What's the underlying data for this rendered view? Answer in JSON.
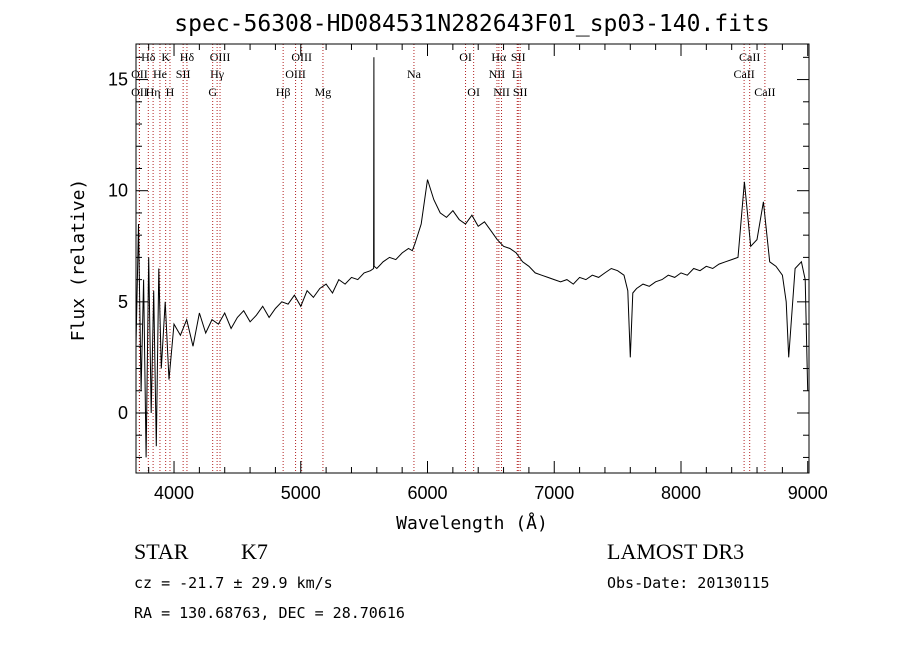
{
  "chart_data": {
    "type": "line",
    "title": "spec-56308-HD084531N282643F01_sp03-140.fits",
    "xlabel": "Wavelength (Å)",
    "ylabel": "Flux (relative)",
    "xlim": [
      3700,
      9010
    ],
    "ylim": [
      -2.7,
      16.6
    ],
    "x_ticks": [
      "4000",
      "5000",
      "6000",
      "7000",
      "8000",
      "9000"
    ],
    "y_ticks": [
      "0",
      "5",
      "10",
      "15"
    ],
    "grid": false,
    "series": [
      {
        "x": [
          3700,
          3720,
          3740,
          3760,
          3780,
          3800,
          3820,
          3840,
          3860,
          3880,
          3900,
          3930,
          3960,
          4000,
          4050,
          4100,
          4150,
          4200,
          4250,
          4300,
          4350,
          4400,
          4450,
          4500,
          4550,
          4600,
          4650,
          4700,
          4750,
          4800,
          4850,
          4900,
          4950,
          5000,
          5050,
          5100,
          5150,
          5200,
          5250,
          5300,
          5350,
          5400,
          5450,
          5500,
          5550,
          5575,
          5577,
          5579,
          5600,
          5650,
          5700,
          5750,
          5800,
          5850,
          5880,
          5900,
          5950,
          6000,
          6050,
          6100,
          6150,
          6200,
          6250,
          6300,
          6350,
          6400,
          6450,
          6500,
          6550,
          6600,
          6650,
          6700,
          6750,
          6800,
          6850,
          6900,
          6950,
          7000,
          7050,
          7100,
          7150,
          7200,
          7250,
          7300,
          7350,
          7400,
          7450,
          7500,
          7550,
          7580,
          7600,
          7620,
          7650,
          7700,
          7750,
          7800,
          7850,
          7900,
          7950,
          8000,
          8050,
          8100,
          8150,
          8200,
          8250,
          8300,
          8350,
          8400,
          8450,
          8500,
          8550,
          8600,
          8650,
          8700,
          8750,
          8800,
          8830,
          8850,
          8900,
          8950,
          8980,
          9000
        ],
        "y": [
          3.0,
          8.5,
          1.0,
          6.0,
          -2.0,
          7.0,
          0.0,
          5.5,
          -1.5,
          6.5,
          2.0,
          5.0,
          1.5,
          4.0,
          3.5,
          4.2,
          3.0,
          4.5,
          3.6,
          4.2,
          4.0,
          4.5,
          3.8,
          4.3,
          4.6,
          4.1,
          4.4,
          4.8,
          4.3,
          4.7,
          5.0,
          4.9,
          5.3,
          4.8,
          5.5,
          5.2,
          5.6,
          5.8,
          5.4,
          6.0,
          5.8,
          6.1,
          6.0,
          6.3,
          6.4,
          6.5,
          16.0,
          6.6,
          6.5,
          6.8,
          7.0,
          6.9,
          7.2,
          7.4,
          7.3,
          7.6,
          8.5,
          10.5,
          9.6,
          9.0,
          8.8,
          9.1,
          8.7,
          8.5,
          8.9,
          8.4,
          8.6,
          8.2,
          7.8,
          7.5,
          7.4,
          7.2,
          6.8,
          6.6,
          6.3,
          6.2,
          6.1,
          6.0,
          5.9,
          6.0,
          5.8,
          6.1,
          6.0,
          6.2,
          6.1,
          6.3,
          6.5,
          6.4,
          6.2,
          5.5,
          2.5,
          5.4,
          5.6,
          5.8,
          5.7,
          5.9,
          6.0,
          6.2,
          6.1,
          6.3,
          6.2,
          6.5,
          6.4,
          6.6,
          6.5,
          6.7,
          6.8,
          6.9,
          7.0,
          10.4,
          7.5,
          7.8,
          9.5,
          6.8,
          6.6,
          6.2,
          5.0,
          2.5,
          6.5,
          6.8,
          6.0,
          1.0
        ]
      }
    ],
    "line_markers": [
      {
        "label": "Hδ",
        "x": 3797,
        "row": 0
      },
      {
        "label": "K",
        "x": 3934,
        "row": 0
      },
      {
        "label": "Hδ",
        "x": 4102,
        "row": 0
      },
      {
        "label": "OIII",
        "x": 4363,
        "row": 0
      },
      {
        "label": "OIII",
        "x": 5007,
        "row": 0
      },
      {
        "label": "OI",
        "x": 6300,
        "row": 0
      },
      {
        "label": "Hα",
        "x": 6563,
        "row": 0
      },
      {
        "label": "SII",
        "x": 6716,
        "row": 0
      },
      {
        "label": "CaII",
        "x": 8542,
        "row": 0
      },
      {
        "label": "OII",
        "x": 3727,
        "row": 1
      },
      {
        "label": "He",
        "x": 3889,
        "row": 1
      },
      {
        "label": "SII",
        "x": 4072,
        "row": 1
      },
      {
        "label": "Hγ",
        "x": 4340,
        "row": 1
      },
      {
        "label": "OIII",
        "x": 4959,
        "row": 1
      },
      {
        "label": "Na",
        "x": 5893,
        "row": 1
      },
      {
        "label": "NII",
        "x": 6548,
        "row": 1
      },
      {
        "label": "Li",
        "x": 6708,
        "row": 1
      },
      {
        "label": "CaII",
        "x": 8498,
        "row": 1
      },
      {
        "label": "OII",
        "x": 3727,
        "row": 2
      },
      {
        "label": "Hη",
        "x": 3835,
        "row": 2
      },
      {
        "label": "H",
        "x": 3968,
        "row": 2
      },
      {
        "label": "G",
        "x": 4305,
        "row": 2
      },
      {
        "label": "Hβ",
        "x": 4861,
        "row": 2
      },
      {
        "label": "Mg",
        "x": 5175,
        "row": 2
      },
      {
        "label": "OI",
        "x": 6364,
        "row": 2
      },
      {
        "label": "NII",
        "x": 6584,
        "row": 2
      },
      {
        "label": "SII",
        "x": 6731,
        "row": 2
      },
      {
        "label": "CaII",
        "x": 8662,
        "row": 2
      }
    ]
  },
  "info": {
    "class": "STAR",
    "subclass": "K7",
    "survey": "LAMOST DR3",
    "cz": "cz = -21.7 ± 29.9 km/s",
    "obs_date": "Obs-Date: 20130115",
    "coords": "RA = 130.68763, DEC =  28.70616"
  }
}
